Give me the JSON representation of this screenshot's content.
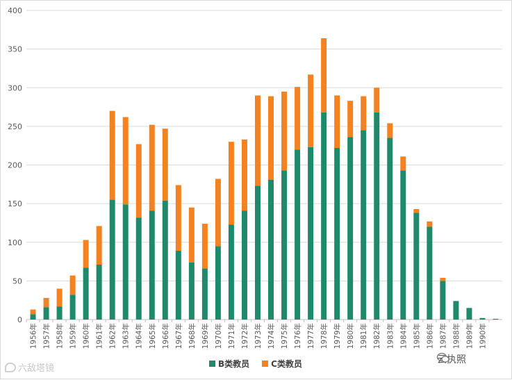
{
  "chart_data": {
    "type": "bar",
    "stacked": true,
    "categories": [
      "1956年",
      "1957年",
      "1958年",
      "1959年",
      "1960年",
      "1961年",
      "1962年",
      "1963年",
      "1964年",
      "1965年",
      "1966年",
      "1967年",
      "1968年",
      "1969年",
      "1970年",
      "1971年",
      "1972年",
      "1973年",
      "1974年",
      "1975年",
      "1976年",
      "1977年",
      "1978年",
      "1979年",
      "1980年",
      "1981年",
      "1982年",
      "1983年",
      "1984年",
      "1985年",
      "1986年",
      "1987年",
      "1988年",
      "1989年",
      "1990年",
      ""
    ],
    "series": [
      {
        "name": "B类教员",
        "color": "#1e8a6b",
        "values": [
          7,
          16,
          17,
          32,
          67,
          71,
          155,
          149,
          132,
          141,
          154,
          89,
          74,
          66,
          95,
          123,
          141,
          173,
          181,
          193,
          220,
          223,
          268,
          222,
          236,
          245,
          268,
          235,
          193,
          138,
          120,
          50,
          24,
          15,
          2,
          1
        ]
      },
      {
        "name": "C类教员",
        "color": "#f58220",
        "values": [
          6,
          12,
          23,
          25,
          36,
          50,
          115,
          113,
          95,
          111,
          93,
          85,
          71,
          58,
          87,
          107,
          92,
          117,
          108,
          102,
          81,
          94,
          96,
          68,
          47,
          44,
          32,
          19,
          18,
          5,
          7,
          4,
          0,
          0,
          0,
          0
        ]
      }
    ],
    "ylim": [
      0,
      400
    ],
    "yticks": [
      0,
      50,
      100,
      150,
      200,
      250,
      300,
      350,
      400
    ],
    "grid": true,
    "legend": "bottom",
    "title": "",
    "xlabel": "",
    "ylabel": ""
  },
  "watermarks": {
    "left_text": "六敌塔镜",
    "right_text": "云执照"
  }
}
